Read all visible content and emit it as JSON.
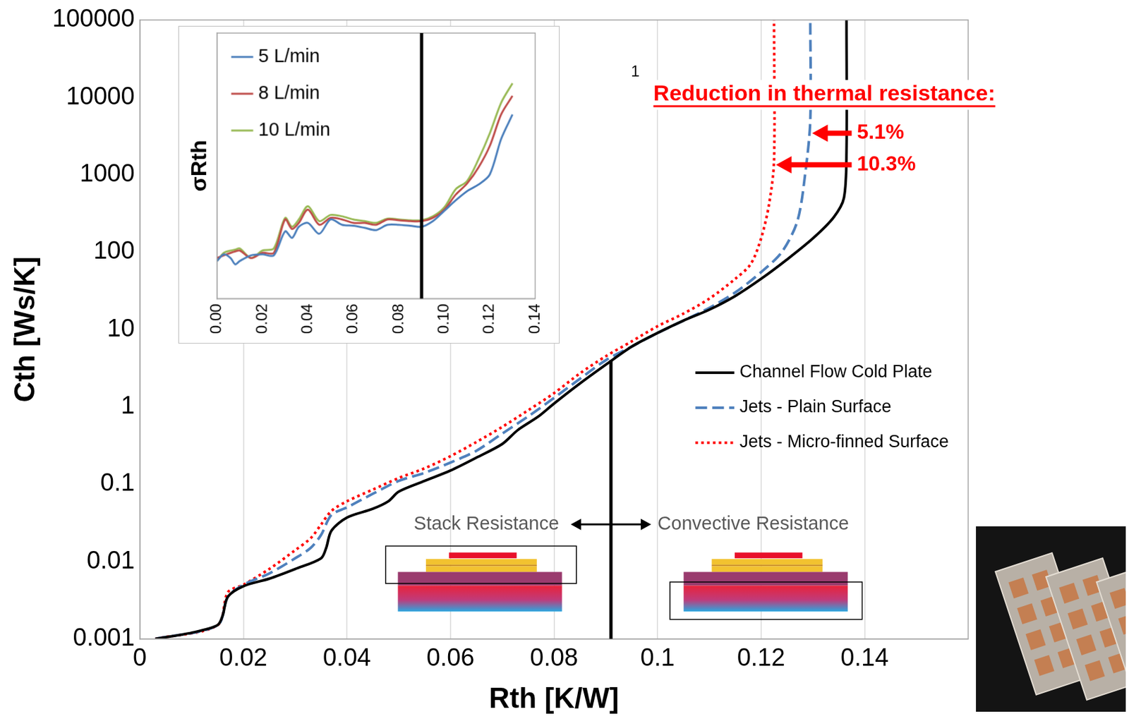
{
  "chart_data": [
    {
      "type": "line",
      "x_label": "Rth [K/W]",
      "y_label": "Cth [Ws/K]",
      "log": "y",
      "grid": "x",
      "legend": "center right",
      "xlim": [
        0,
        0.16
      ],
      "xticks": [
        0,
        0.02,
        0.04,
        0.06,
        0.08,
        0.1,
        0.12,
        0.14
      ],
      "ylim": [
        0.001,
        100000
      ],
      "yticks": [
        0.001,
        0.01,
        0.1,
        1,
        10,
        100,
        1000,
        10000,
        100000
      ],
      "series": [
        {
          "name": "Channel Flow Cold Plate",
          "color": "#000000",
          "line_style": "solid",
          "marker": "none",
          "x": [
            0.003,
            0.01,
            0.015,
            0.016,
            0.017,
            0.02,
            0.025,
            0.03,
            0.035,
            0.036,
            0.037,
            0.04,
            0.045,
            0.048,
            0.05,
            0.055,
            0.06,
            0.065,
            0.07,
            0.073,
            0.077,
            0.08,
            0.085,
            0.09,
            0.095,
            0.1,
            0.105,
            0.11,
            0.115,
            0.12,
            0.125,
            0.13,
            0.134,
            0.136,
            0.1365,
            0.1365
          ],
          "values": [
            0.001,
            0.0012,
            0.0015,
            0.002,
            0.0035,
            0.0048,
            0.006,
            0.008,
            0.011,
            0.015,
            0.025,
            0.037,
            0.048,
            0.06,
            0.08,
            0.11,
            0.15,
            0.22,
            0.33,
            0.5,
            0.75,
            1.1,
            2,
            3.5,
            6,
            9,
            13,
            18,
            27,
            45,
            80,
            150,
            280,
            500,
            2000,
            100000
          ]
        },
        {
          "name": "Jets - Plain Surface",
          "color": "#4F81BD",
          "line_style": "dashed",
          "marker": "none",
          "x": [
            0.003,
            0.015,
            0.017,
            0.02,
            0.025,
            0.03,
            0.033,
            0.035,
            0.037,
            0.04,
            0.045,
            0.05,
            0.055,
            0.06,
            0.065,
            0.07,
            0.075,
            0.08,
            0.085,
            0.09,
            0.095,
            0.1,
            0.105,
            0.11,
            0.115,
            0.12,
            0.124,
            0.127,
            0.1285,
            0.1295,
            0.1295
          ],
          "values": [
            0.001,
            0.0015,
            0.0035,
            0.005,
            0.007,
            0.011,
            0.015,
            0.022,
            0.04,
            0.05,
            0.075,
            0.11,
            0.14,
            0.19,
            0.27,
            0.45,
            0.75,
            1.3,
            2.3,
            4,
            6,
            9,
            13,
            19,
            30,
            55,
            100,
            250,
            1000,
            5000,
            100000
          ]
        },
        {
          "name": "Jets - Micro-finned Surface",
          "color": "#FF0000",
          "line_style": "dotted",
          "marker": "none",
          "x": [
            0.003,
            0.015,
            0.017,
            0.02,
            0.025,
            0.03,
            0.033,
            0.035,
            0.037,
            0.04,
            0.045,
            0.05,
            0.055,
            0.06,
            0.065,
            0.07,
            0.075,
            0.08,
            0.085,
            0.09,
            0.095,
            0.1,
            0.105,
            0.11,
            0.115,
            0.118,
            0.12,
            0.1215,
            0.1225,
            0.1225
          ],
          "values": [
            0.001,
            0.0015,
            0.004,
            0.005,
            0.008,
            0.014,
            0.02,
            0.03,
            0.045,
            0.06,
            0.085,
            0.12,
            0.16,
            0.23,
            0.35,
            0.55,
            0.9,
            1.5,
            2.7,
            4.5,
            7,
            11,
            16,
            25,
            45,
            70,
            150,
            400,
            1500,
            100000
          ]
        }
      ],
      "divider": {
        "x": 0.091,
        "ymax": 4
      },
      "annotations": {
        "note": "1",
        "heading": "Reduction in thermal resistance:",
        "reductions": [
          {
            "series": "Jets - Plain Surface",
            "label": "5.1%"
          },
          {
            "series": "Jets - Micro-finned Surface",
            "label": "10.3%"
          }
        ],
        "regions": [
          "Stack Resistance",
          "Convective Resistance"
        ]
      }
    },
    {
      "type": "line",
      "y_label": "σRth",
      "log": "y",
      "grid": false,
      "legend": "upper left",
      "tick_labels": "x",
      "xlim": [
        0,
        0.14
      ],
      "xticks": [
        {
          "value": 0,
          "label": "0.00"
        },
        {
          "value": 0.02,
          "label": "0.02"
        },
        {
          "value": 0.04,
          "label": "0.04"
        },
        {
          "value": 0.06,
          "label": "0.06"
        },
        {
          "value": 0.08,
          "label": "0.08"
        },
        {
          "value": 0.1,
          "label": "0.10"
        },
        {
          "value": 0.12,
          "label": "0.12"
        },
        {
          "value": 0.14,
          "label": "0.14"
        }
      ],
      "ylim": [
        15,
        75000
      ],
      "x": [
        0,
        0.003,
        0.006,
        0.008,
        0.01,
        0.015,
        0.02,
        0.025,
        0.03,
        0.033,
        0.036,
        0.04,
        0.045,
        0.05,
        0.055,
        0.06,
        0.065,
        0.07,
        0.075,
        0.08,
        0.085,
        0.09,
        0.095,
        0.1,
        0.105,
        0.11,
        0.115,
        0.12,
        0.125,
        0.13
      ],
      "series": [
        {
          "name": "5 L/min",
          "color": "#4A7EBB",
          "line_style": "solid",
          "marker": "none",
          "values": [
            50,
            62,
            55,
            45,
            50,
            60,
            62,
            60,
            130,
            105,
            150,
            170,
            120,
            190,
            160,
            155,
            145,
            135,
            160,
            160,
            155,
            150,
            180,
            250,
            350,
            470,
            580,
            800,
            2500,
            5500
          ]
        },
        {
          "name": "8 L/min",
          "color": "#BE4B48",
          "line_style": "solid",
          "marker": "none",
          "values": [
            55,
            60,
            65,
            68,
            70,
            55,
            65,
            65,
            190,
            140,
            170,
            260,
            160,
            200,
            190,
            170,
            170,
            160,
            190,
            185,
            180,
            180,
            200,
            260,
            420,
            600,
            1000,
            2000,
            5500,
            10000
          ]
        },
        {
          "name": "10 L/min",
          "color": "#98B954",
          "line_style": "solid",
          "marker": "none",
          "values": [
            50,
            65,
            70,
            72,
            75,
            55,
            70,
            75,
            200,
            150,
            190,
            290,
            180,
            220,
            210,
            190,
            180,
            170,
            195,
            190,
            185,
            185,
            210,
            280,
            500,
            650,
            1300,
            3000,
            8000,
            15000
          ]
        }
      ],
      "divider": {
        "x": 0.09
      }
    }
  ]
}
